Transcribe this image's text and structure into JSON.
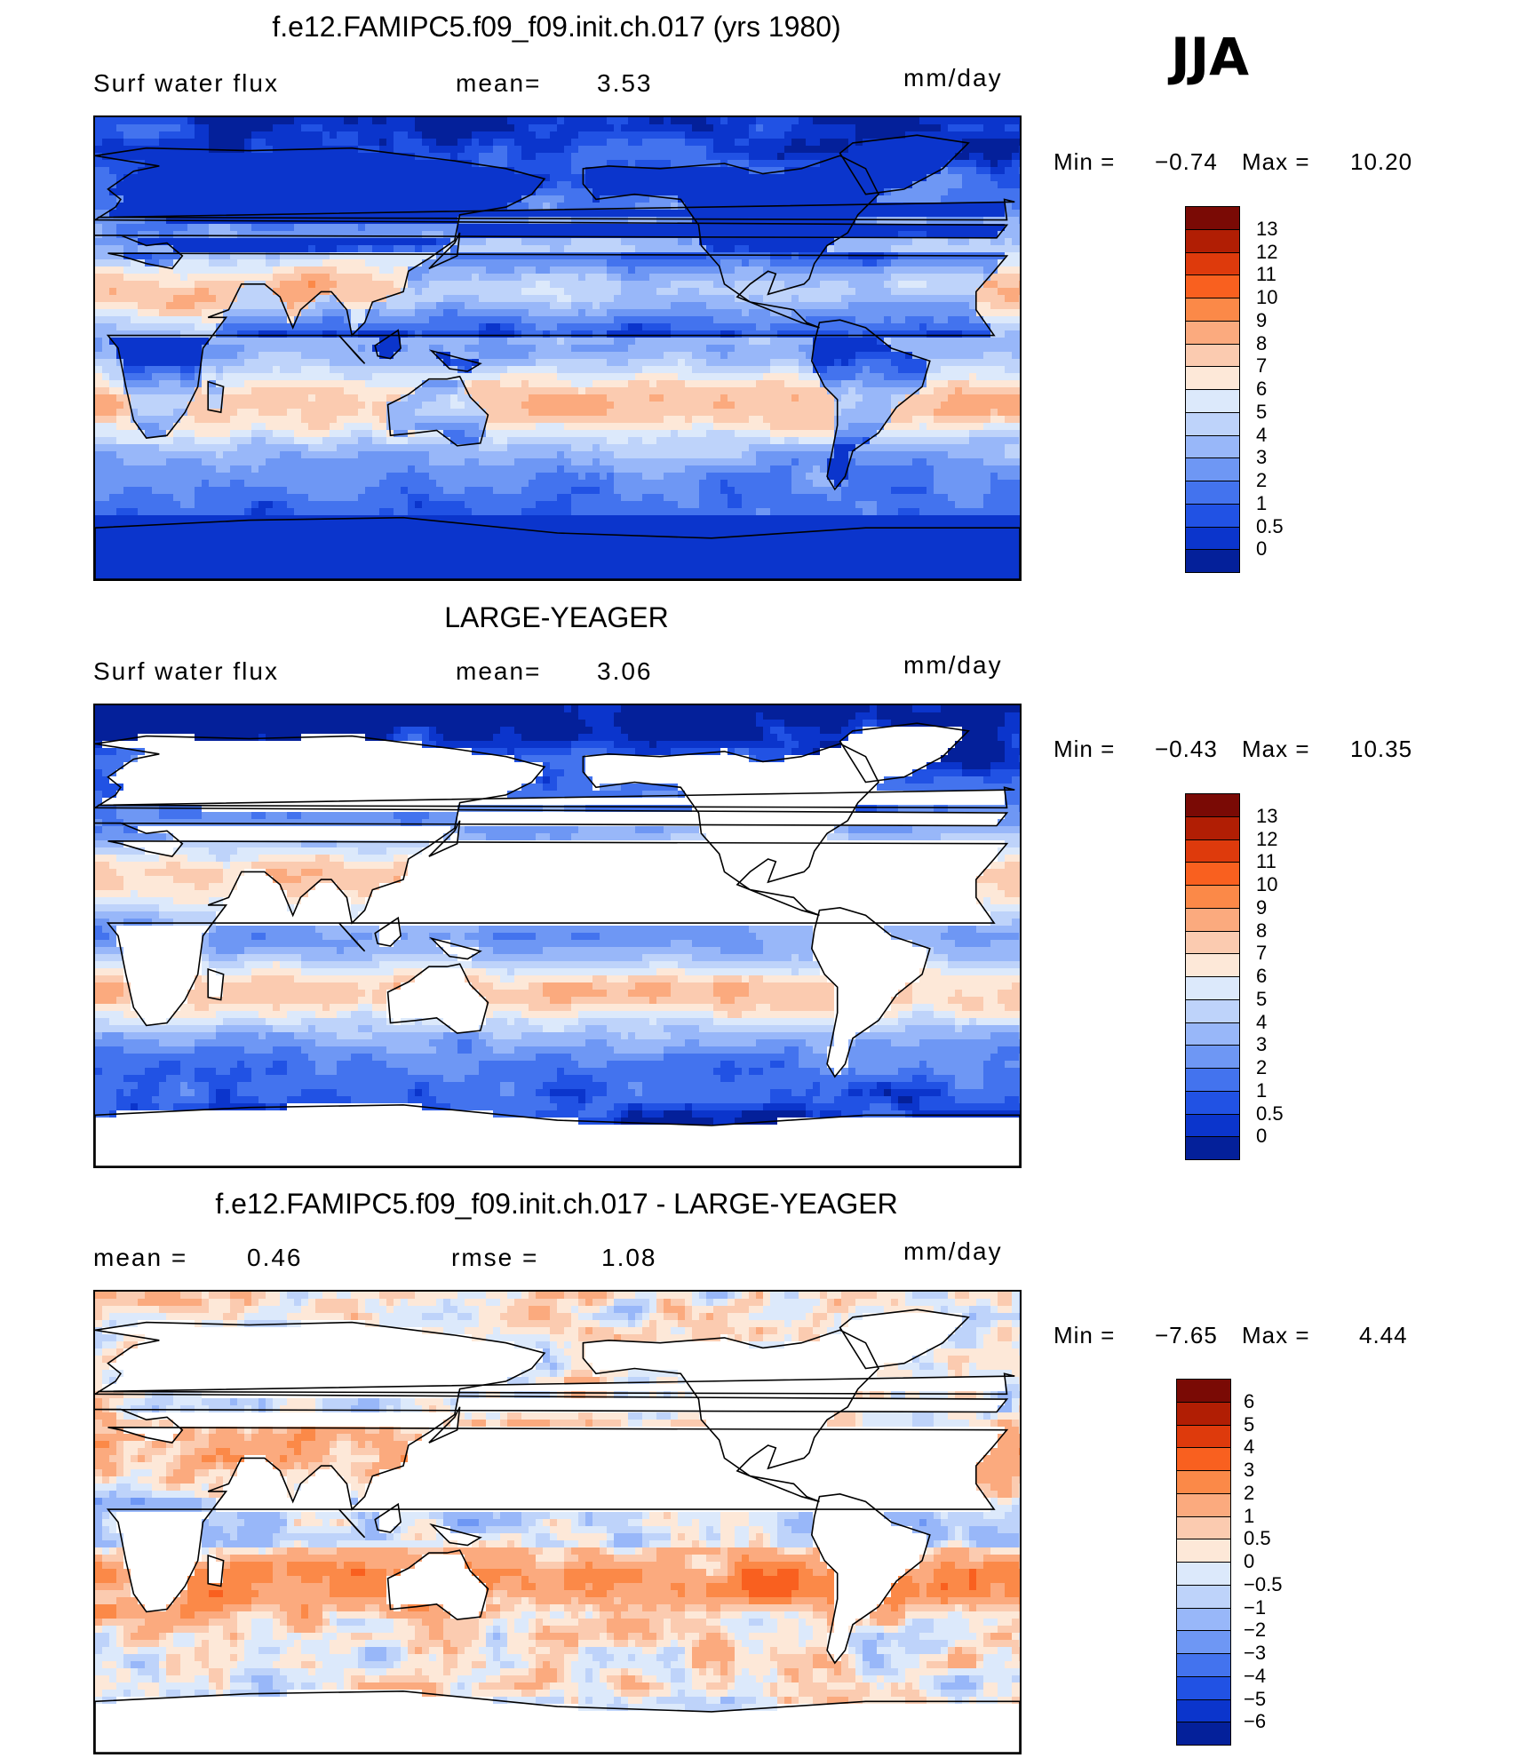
{
  "season": "JJA",
  "panels": [
    {
      "id": "model",
      "title": "f.e12.FAMIPC5.f09_f09.init.ch.017 (yrs 1980)",
      "left_label": "Surf  water  flux",
      "mid_label": "mean=",
      "mid_value": "3.53",
      "units": "mm/day",
      "min_label": "Min  =",
      "min_value": "−0.74",
      "max_label": "Max  =",
      "max_value": "10.20",
      "colorbar": {
        "labels": [
          "13",
          "12",
          "11",
          "10",
          "9",
          "8",
          "7",
          "6",
          "5",
          "4",
          "3",
          "2",
          "1",
          "0.5",
          "0"
        ],
        "colors": [
          "#7a0a05",
          "#b11e04",
          "#de3a0c",
          "#f9601f",
          "#fb8948",
          "#fbaa7e",
          "#fbcbb0",
          "#fde8d8",
          "#dce9fb",
          "#bed3fa",
          "#98b7f9",
          "#6e97f4",
          "#4373ee",
          "#2152e4",
          "#0b35cc",
          "#04209a"
        ]
      },
      "map_type": "sequential"
    },
    {
      "id": "obs",
      "title": "LARGE-YEAGER",
      "left_label": "Surf  water  flux",
      "mid_label": "mean=",
      "mid_value": "3.06",
      "units": "mm/day",
      "min_label": "Min  =",
      "min_value": "−0.43",
      "max_label": "Max  =",
      "max_value": "10.35",
      "colorbar": {
        "labels": [
          "13",
          "12",
          "11",
          "10",
          "9",
          "8",
          "7",
          "6",
          "5",
          "4",
          "3",
          "2",
          "1",
          "0.5",
          "0"
        ],
        "colors": [
          "#7a0a05",
          "#b11e04",
          "#de3a0c",
          "#f9601f",
          "#fb8948",
          "#fbaa7e",
          "#fbcbb0",
          "#fde8d8",
          "#dce9fb",
          "#bed3fa",
          "#98b7f9",
          "#6e97f4",
          "#4373ee",
          "#2152e4",
          "#0b35cc",
          "#04209a"
        ]
      },
      "map_type": "sequential-ocean"
    },
    {
      "id": "diff",
      "title": "f.e12.FAMIPC5.f09_f09.init.ch.017 - LARGE-YEAGER",
      "left_label": "mean  =",
      "left_value": "0.46",
      "mid_label": "rmse  =",
      "mid_value": "1.08",
      "units": "mm/day",
      "min_label": "Min  =",
      "min_value": "−7.65",
      "max_label": "Max  =",
      "max_value": "4.44",
      "colorbar": {
        "labels": [
          "6",
          "5",
          "4",
          "3",
          "2",
          "1",
          "0.5",
          "0",
          "−0.5",
          "−1",
          "−2",
          "−3",
          "−4",
          "−5",
          "−6"
        ],
        "colors": [
          "#7a0a05",
          "#b11e04",
          "#de3a0c",
          "#f9601f",
          "#fb8948",
          "#fbaa7e",
          "#fbcbb0",
          "#fde8d8",
          "#dce9fb",
          "#bed3fa",
          "#98b7f9",
          "#6e97f4",
          "#4373ee",
          "#2152e4",
          "#0b35cc",
          "#04209a"
        ]
      },
      "map_type": "diverging"
    }
  ]
}
